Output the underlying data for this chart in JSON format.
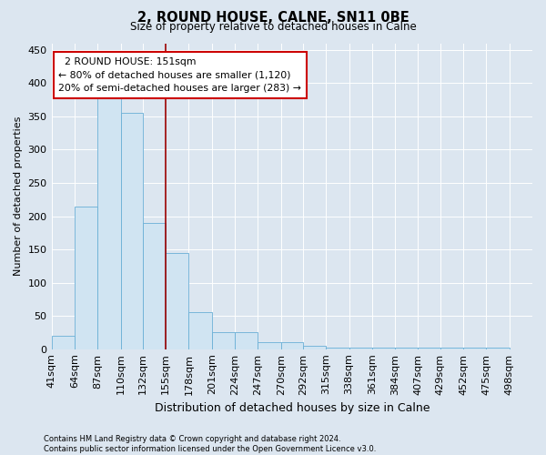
{
  "title": "2, ROUND HOUSE, CALNE, SN11 0BE",
  "subtitle": "Size of property relative to detached houses in Calne",
  "xlabel": "Distribution of detached houses by size in Calne",
  "ylabel": "Number of detached properties",
  "bin_labels": [
    "41sqm",
    "64sqm",
    "87sqm",
    "110sqm",
    "132sqm",
    "155sqm",
    "178sqm",
    "201sqm",
    "224sqm",
    "247sqm",
    "270sqm",
    "292sqm",
    "315sqm",
    "338sqm",
    "361sqm",
    "384sqm",
    "407sqm",
    "429sqm",
    "452sqm",
    "475sqm",
    "498sqm"
  ],
  "bin_edges": [
    41,
    64,
    87,
    110,
    132,
    155,
    178,
    201,
    224,
    247,
    270,
    292,
    315,
    338,
    361,
    384,
    407,
    429,
    452,
    475,
    498
  ],
  "bar_heights": [
    20,
    215,
    390,
    355,
    190,
    145,
    55,
    25,
    25,
    10,
    10,
    5,
    2,
    2,
    2,
    2,
    2,
    2,
    2,
    2
  ],
  "bar_color": "#d0e4f2",
  "bar_edge_color": "#6aafd6",
  "vline_x": 155,
  "vline_color": "#990000",
  "ylim": [
    0,
    460
  ],
  "yticks": [
    0,
    50,
    100,
    150,
    200,
    250,
    300,
    350,
    400,
    450
  ],
  "annotation_text": "  2 ROUND HOUSE: 151sqm  \n← 80% of detached houses are smaller (1,120)\n20% of semi-detached houses are larger (283) →",
  "annotation_box_color": "#ffffff",
  "annotation_box_edge": "#cc0000",
  "footer_text": "Contains HM Land Registry data © Crown copyright and database right 2024.\nContains public sector information licensed under the Open Government Licence v3.0.",
  "background_color": "#dce6f0",
  "plot_background": "#dce6f0",
  "grid_color": "#ffffff"
}
